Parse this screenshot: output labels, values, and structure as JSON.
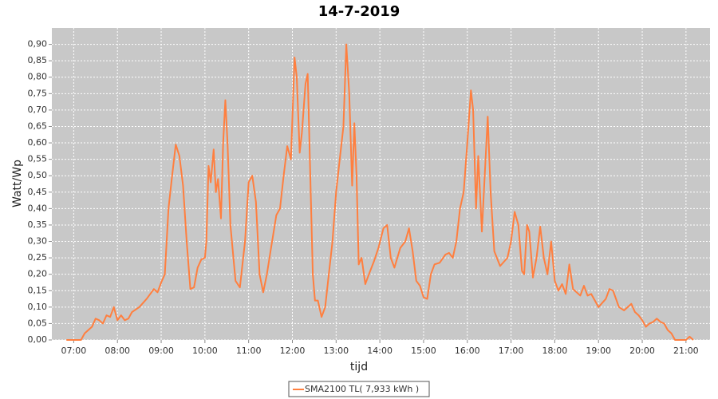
{
  "chart_data": {
    "type": "line",
    "title": "14-7-2019",
    "x_label": "tijd",
    "y_label": "Watt/Wp",
    "xlim": [
      6.5,
      21.55
    ],
    "ylim": [
      0,
      0.95
    ],
    "grid": true,
    "legend": "bottom",
    "xticks": [
      {
        "value": 7,
        "label": "07:00"
      },
      {
        "value": 8,
        "label": "08:00"
      },
      {
        "value": 9,
        "label": "09:00"
      },
      {
        "value": 10,
        "label": "10:00"
      },
      {
        "value": 11,
        "label": "11:00"
      },
      {
        "value": 12,
        "label": "12:00"
      },
      {
        "value": 13,
        "label": "13:00"
      },
      {
        "value": 14,
        "label": "14:00"
      },
      {
        "value": 15,
        "label": "15:00"
      },
      {
        "value": 16,
        "label": "16:00"
      },
      {
        "value": 17,
        "label": "17:00"
      },
      {
        "value": 18,
        "label": "18:00"
      },
      {
        "value": 19,
        "label": "19:00"
      },
      {
        "value": 20,
        "label": "20:00"
      },
      {
        "value": 21,
        "label": "21:00"
      }
    ],
    "yticks": [
      {
        "value": 0,
        "label": "0,00"
      },
      {
        "value": 0.05,
        "label": "0,05"
      },
      {
        "value": 0.1,
        "label": "0,10"
      },
      {
        "value": 0.15,
        "label": "0,15"
      },
      {
        "value": 0.2,
        "label": "0,20"
      },
      {
        "value": 0.25,
        "label": "0,25"
      },
      {
        "value": 0.3,
        "label": "0,30"
      },
      {
        "value": 0.35,
        "label": "0,35"
      },
      {
        "value": 0.4,
        "label": "0,40"
      },
      {
        "value": 0.45,
        "label": "0,45"
      },
      {
        "value": 0.5,
        "label": "0,50"
      },
      {
        "value": 0.55,
        "label": "0,55"
      },
      {
        "value": 0.6,
        "label": "0,60"
      },
      {
        "value": 0.65,
        "label": "0,65"
      },
      {
        "value": 0.7,
        "label": "0,70"
      },
      {
        "value": 0.75,
        "label": "0,75"
      },
      {
        "value": 0.8,
        "label": "0,80"
      },
      {
        "value": 0.85,
        "label": "0,85"
      },
      {
        "value": 0.9,
        "label": "0,90"
      }
    ],
    "x": [
      6.833,
      7.167,
      7.25,
      7.417,
      7.5,
      7.583,
      7.667,
      7.75,
      7.833,
      7.917,
      8.0,
      8.083,
      8.167,
      8.25,
      8.333,
      8.5,
      8.667,
      8.833,
      8.917,
      9.0,
      9.083,
      9.167,
      9.25,
      9.333,
      9.417,
      9.5,
      9.583,
      9.667,
      9.75,
      9.833,
      9.917,
      10.0,
      10.033,
      10.083,
      10.133,
      10.2,
      10.25,
      10.3,
      10.367,
      10.417,
      10.467,
      10.517,
      10.583,
      10.7,
      10.8,
      10.917,
      11.0,
      11.083,
      11.167,
      11.25,
      11.333,
      11.417,
      11.5,
      11.633,
      11.717,
      11.8,
      11.883,
      11.967,
      12.05,
      12.1,
      12.167,
      12.217,
      12.3,
      12.35,
      12.4,
      12.467,
      12.517,
      12.583,
      12.667,
      12.75,
      12.833,
      12.917,
      13.0,
      13.083,
      13.167,
      13.233,
      13.3,
      13.367,
      13.417,
      13.467,
      13.517,
      13.583,
      13.667,
      13.75,
      13.867,
      13.967,
      14.083,
      14.167,
      14.25,
      14.333,
      14.467,
      14.583,
      14.667,
      14.75,
      14.833,
      14.917,
      15.0,
      15.083,
      15.167,
      15.25,
      15.367,
      15.5,
      15.583,
      15.667,
      15.75,
      15.833,
      15.917,
      16.0,
      16.083,
      16.133,
      16.2,
      16.25,
      16.333,
      16.417,
      16.467,
      16.533,
      16.617,
      16.75,
      16.917,
      17.0,
      17.083,
      17.167,
      17.25,
      17.3,
      17.367,
      17.417,
      17.5,
      17.583,
      17.667,
      17.75,
      17.833,
      17.917,
      18.0,
      18.083,
      18.167,
      18.25,
      18.333,
      18.417,
      18.5,
      18.583,
      18.667,
      18.75,
      18.833,
      18.917,
      19.0,
      19.167,
      19.25,
      19.333,
      19.467,
      19.583,
      19.667,
      19.75,
      19.833,
      19.917,
      20.0,
      20.083,
      20.167,
      20.25,
      20.333,
      20.417,
      20.5,
      20.583,
      20.667,
      20.75,
      20.917,
      21.0,
      21.083,
      21.167
    ],
    "series": [
      {
        "name": "SMA2100 TL( 7,933 kWh )",
        "color": "#ff7f3f",
        "values": [
          0,
          0,
          0.02,
          0.04,
          0.065,
          0.06,
          0.05,
          0.075,
          0.07,
          0.1,
          0.06,
          0.075,
          0.06,
          0.065,
          0.085,
          0.1,
          0.125,
          0.155,
          0.145,
          0.175,
          0.2,
          0.4,
          0.5,
          0.595,
          0.56,
          0.47,
          0.3,
          0.155,
          0.16,
          0.22,
          0.245,
          0.25,
          0.3,
          0.53,
          0.48,
          0.58,
          0.45,
          0.49,
          0.37,
          0.6,
          0.73,
          0.6,
          0.35,
          0.18,
          0.16,
          0.3,
          0.48,
          0.5,
          0.42,
          0.2,
          0.145,
          0.2,
          0.27,
          0.38,
          0.4,
          0.5,
          0.59,
          0.55,
          0.86,
          0.8,
          0.57,
          0.63,
          0.78,
          0.81,
          0.55,
          0.2,
          0.12,
          0.12,
          0.07,
          0.1,
          0.2,
          0.3,
          0.45,
          0.55,
          0.65,
          0.9,
          0.75,
          0.47,
          0.66,
          0.5,
          0.23,
          0.25,
          0.17,
          0.2,
          0.24,
          0.28,
          0.34,
          0.35,
          0.25,
          0.22,
          0.28,
          0.3,
          0.34,
          0.27,
          0.18,
          0.165,
          0.13,
          0.125,
          0.2,
          0.23,
          0.235,
          0.26,
          0.265,
          0.25,
          0.3,
          0.4,
          0.45,
          0.6,
          0.76,
          0.7,
          0.4,
          0.56,
          0.33,
          0.55,
          0.68,
          0.45,
          0.27,
          0.225,
          0.25,
          0.3,
          0.39,
          0.35,
          0.21,
          0.2,
          0.35,
          0.33,
          0.19,
          0.25,
          0.345,
          0.25,
          0.2,
          0.3,
          0.18,
          0.15,
          0.17,
          0.14,
          0.23,
          0.155,
          0.145,
          0.135,
          0.165,
          0.135,
          0.14,
          0.12,
          0.1,
          0.125,
          0.155,
          0.15,
          0.1,
          0.09,
          0.1,
          0.11,
          0.085,
          0.075,
          0.06,
          0.04,
          0.05,
          0.055,
          0.065,
          0.055,
          0.05,
          0.03,
          0.02,
          0,
          0,
          0,
          0.01,
          0
        ]
      }
    ]
  }
}
